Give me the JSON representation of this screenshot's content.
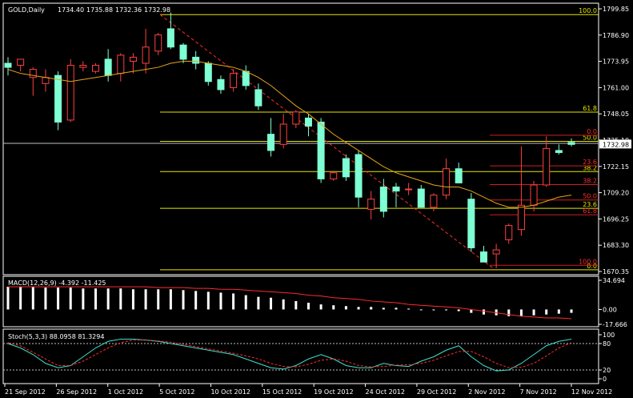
{
  "chart_data": [
    {
      "type": "candlestick",
      "title": "GOLD,Daily",
      "ohlc": [
        "1734.40",
        "1735.88",
        "1732.36",
        "1732.98"
      ],
      "price_axis": [
        "1799.85",
        "1786.90",
        "1773.95",
        "1761.00",
        "1748.05",
        "1735.10",
        "1722.15",
        "1709.20",
        "1696.25",
        "1683.30",
        "1670.35"
      ],
      "last_price": "1732.98",
      "ylim": [
        1670.35,
        1799.85
      ],
      "x_labels": [
        "21 Sep 2012",
        "26 Sep 2012",
        "1 Oct 2012",
        "5 Oct 2012",
        "10 Oct 2012",
        "15 Oct 2012",
        "19 Oct 2012",
        "24 Oct 2012",
        "29 Oct 2012",
        "2 Nov 2012",
        "7 Nov 2012",
        "12 Nov 2012"
      ],
      "candles": [
        {
          "o": 1773,
          "h": 1776,
          "l": 1767,
          "c": 1771
        },
        {
          "o": 1772,
          "h": 1775,
          "l": 1769,
          "c": 1775
        },
        {
          "o": 1766,
          "h": 1771,
          "l": 1757,
          "c": 1770
        },
        {
          "o": 1763,
          "h": 1770,
          "l": 1759,
          "c": 1766
        },
        {
          "o": 1767,
          "h": 1769,
          "l": 1740,
          "c": 1744
        },
        {
          "o": 1745,
          "h": 1775,
          "l": 1744,
          "c": 1772
        },
        {
          "o": 1771,
          "h": 1774,
          "l": 1769,
          "c": 1772
        },
        {
          "o": 1769,
          "h": 1773,
          "l": 1768,
          "c": 1772
        },
        {
          "o": 1775,
          "h": 1780,
          "l": 1764,
          "c": 1767
        },
        {
          "o": 1768,
          "h": 1778,
          "l": 1764,
          "c": 1777
        },
        {
          "o": 1774,
          "h": 1778,
          "l": 1768,
          "c": 1776
        },
        {
          "o": 1773,
          "h": 1790,
          "l": 1768,
          "c": 1781
        },
        {
          "o": 1779,
          "h": 1788,
          "l": 1777,
          "c": 1787
        },
        {
          "o": 1790,
          "h": 1798,
          "l": 1780,
          "c": 1781
        },
        {
          "o": 1782,
          "h": 1783,
          "l": 1773,
          "c": 1775
        },
        {
          "o": 1776,
          "h": 1779,
          "l": 1770,
          "c": 1773
        },
        {
          "o": 1773,
          "h": 1774,
          "l": 1762,
          "c": 1764
        },
        {
          "o": 1765,
          "h": 1767,
          "l": 1758,
          "c": 1760
        },
        {
          "o": 1761,
          "h": 1770,
          "l": 1759,
          "c": 1768
        },
        {
          "o": 1769,
          "h": 1772,
          "l": 1760,
          "c": 1762
        },
        {
          "o": 1760,
          "h": 1763,
          "l": 1750,
          "c": 1752
        },
        {
          "o": 1738,
          "h": 1746,
          "l": 1727,
          "c": 1730
        },
        {
          "o": 1733,
          "h": 1748,
          "l": 1731,
          "c": 1743
        },
        {
          "o": 1743,
          "h": 1750,
          "l": 1741,
          "c": 1749
        },
        {
          "o": 1746,
          "h": 1748,
          "l": 1737,
          "c": 1742
        },
        {
          "o": 1744,
          "h": 1746,
          "l": 1714,
          "c": 1716
        },
        {
          "o": 1716,
          "h": 1720,
          "l": 1715,
          "c": 1719
        },
        {
          "o": 1726,
          "h": 1728,
          "l": 1715,
          "c": 1717
        },
        {
          "o": 1728,
          "h": 1730,
          "l": 1702,
          "c": 1707
        },
        {
          "o": 1701,
          "h": 1710,
          "l": 1696,
          "c": 1706
        },
        {
          "o": 1712,
          "h": 1716,
          "l": 1697,
          "c": 1700
        },
        {
          "o": 1712,
          "h": 1714,
          "l": 1702,
          "c": 1710
        },
        {
          "o": 1711,
          "h": 1714,
          "l": 1708,
          "c": 1711
        },
        {
          "o": 1711,
          "h": 1713,
          "l": 1703,
          "c": 1702
        },
        {
          "o": 1702,
          "h": 1709,
          "l": 1700,
          "c": 1708
        },
        {
          "o": 1708,
          "h": 1726,
          "l": 1706,
          "c": 1721
        },
        {
          "o": 1721,
          "h": 1724,
          "l": 1714,
          "c": 1714
        },
        {
          "o": 1706,
          "h": 1709,
          "l": 1680,
          "c": 1682
        },
        {
          "o": 1680,
          "h": 1683,
          "l": 1675,
          "c": 1675
        },
        {
          "o": 1679,
          "h": 1684,
          "l": 1672,
          "c": 1681
        },
        {
          "o": 1686,
          "h": 1694,
          "l": 1684,
          "c": 1693
        },
        {
          "o": 1691,
          "h": 1732,
          "l": 1688,
          "c": 1703
        },
        {
          "o": 1703,
          "h": 1715,
          "l": 1700,
          "c": 1713
        },
        {
          "o": 1713,
          "h": 1737,
          "l": 1712,
          "c": 1731
        },
        {
          "o": 1730,
          "h": 1733,
          "l": 1728,
          "c": 1729
        },
        {
          "o": 1734,
          "h": 1736,
          "l": 1732,
          "c": 1733
        }
      ],
      "moving_average": [
        1770,
        1768,
        1767,
        1766,
        1765,
        1764,
        1765,
        1766,
        1767,
        1768,
        1769,
        1770,
        1771,
        1773,
        1774,
        1774,
        1773,
        1772,
        1771,
        1769,
        1766,
        1762,
        1757,
        1752,
        1748,
        1743,
        1738,
        1734,
        1730,
        1726,
        1722,
        1719,
        1717,
        1715,
        1713,
        1712,
        1712,
        1710,
        1707,
        1704,
        1702,
        1702,
        1703,
        1705,
        1707,
        1708
      ],
      "trendline": {
        "start_value": 1797,
        "end_value": 1672
      },
      "fib_left": [
        {
          "label": "100.0",
          "value": 1797.0
        },
        {
          "label": "61.8",
          "value": 1748.9
        },
        {
          "label": "50.0",
          "value": 1734.5
        },
        {
          "label": "38.2",
          "value": 1719.6
        },
        {
          "label": "23.6",
          "value": 1701.5
        },
        {
          "label": "0.0",
          "value": 1671.2
        }
      ],
      "fib_right": [
        {
          "label": "0.0",
          "value": 1737.5
        },
        {
          "label": "23.6",
          "value": 1722.4
        },
        {
          "label": "38.2",
          "value": 1713.2
        },
        {
          "label": "50.0",
          "value": 1705.6
        },
        {
          "label": "61.8",
          "value": 1698.3
        },
        {
          "label": "100.0",
          "value": 1673.4
        }
      ],
      "horizontal_line": 1733.5
    },
    {
      "type": "bar",
      "title": "MACD(12,26,9) -4.392 -11.425",
      "axis": [
        "34.694",
        "0.00",
        "-17.666"
      ],
      "ylim": [
        -17.666,
        34.694
      ],
      "values": [
        27,
        27,
        27,
        26,
        26,
        26,
        25,
        25,
        25,
        25,
        24,
        24,
        24,
        24,
        23,
        22,
        21,
        20,
        19,
        17,
        15,
        14,
        12,
        10,
        8,
        6,
        5,
        4,
        3,
        3,
        2,
        2,
        1,
        0,
        -1,
        -1,
        -2,
        -4,
        -6,
        -7,
        -8,
        -8,
        -7,
        -6,
        -5,
        -4
      ],
      "signal": [
        27,
        27,
        27,
        27,
        27,
        27,
        27,
        27,
        27,
        27,
        27,
        27,
        26,
        26,
        26,
        25,
        25,
        24,
        24,
        23,
        22,
        21,
        20,
        19,
        17,
        16,
        14,
        13,
        12,
        10,
        9,
        8,
        6,
        5,
        4,
        3,
        2,
        0,
        -2,
        -4,
        -6,
        -8,
        -9,
        -10,
        -10,
        -11
      ]
    },
    {
      "type": "line",
      "title": "Stoch(5,3,3) 88.0958 81.3294",
      "axis": [
        "100",
        "80",
        "20",
        "0"
      ],
      "ylim": [
        0,
        100
      ],
      "series": [
        {
          "values": [
            80,
            70,
            55,
            35,
            25,
            30,
            50,
            70,
            85,
            90,
            90,
            88,
            85,
            80,
            75,
            70,
            65,
            60,
            55,
            45,
            35,
            25,
            22,
            30,
            45,
            55,
            45,
            30,
            25,
            25,
            35,
            30,
            28,
            40,
            50,
            65,
            75,
            50,
            30,
            18,
            20,
            35,
            55,
            75,
            85,
            90
          ]
        },
        {
          "values": [
            82,
            75,
            60,
            45,
            30,
            30,
            40,
            55,
            70,
            82,
            88,
            88,
            86,
            83,
            78,
            73,
            68,
            63,
            58,
            52,
            45,
            35,
            28,
            27,
            33,
            42,
            45,
            40,
            30,
            27,
            28,
            31,
            32,
            35,
            42,
            52,
            62,
            62,
            50,
            35,
            25,
            26,
            35,
            52,
            70,
            82
          ]
        }
      ]
    }
  ]
}
